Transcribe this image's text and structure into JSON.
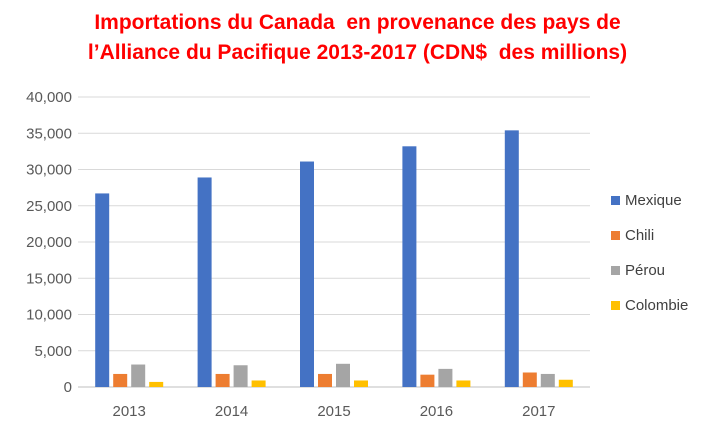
{
  "chart_data": {
    "type": "bar",
    "title_line1": "Importations du Canada  en provenance des pays de",
    "title_line2": "l’Alliance du Pacifique 2013-2017 (CDN$  des millions)",
    "categories": [
      "2013",
      "2014",
      "2015",
      "2016",
      "2017"
    ],
    "series": [
      {
        "name": "Mexique",
        "color": "#4472c4",
        "values": [
          26700,
          28900,
          31100,
          33200,
          35400
        ]
      },
      {
        "name": "Chili",
        "color": "#ed7d31",
        "values": [
          1800,
          1800,
          1800,
          1700,
          2000
        ]
      },
      {
        "name": "Pérou",
        "color": "#a5a5a5",
        "values": [
          3100,
          3000,
          3200,
          2500,
          1800
        ]
      },
      {
        "name": "Colombie",
        "color": "#ffc000",
        "values": [
          700,
          900,
          900,
          900,
          1000
        ]
      }
    ],
    "ylim": [
      0,
      40000
    ],
    "yticks": [
      "0",
      "5,000",
      "10,000",
      "15,000",
      "20,000",
      "25,000",
      "30,000",
      "35,000",
      "40,000"
    ],
    "grid": true,
    "legend_position": "right"
  }
}
